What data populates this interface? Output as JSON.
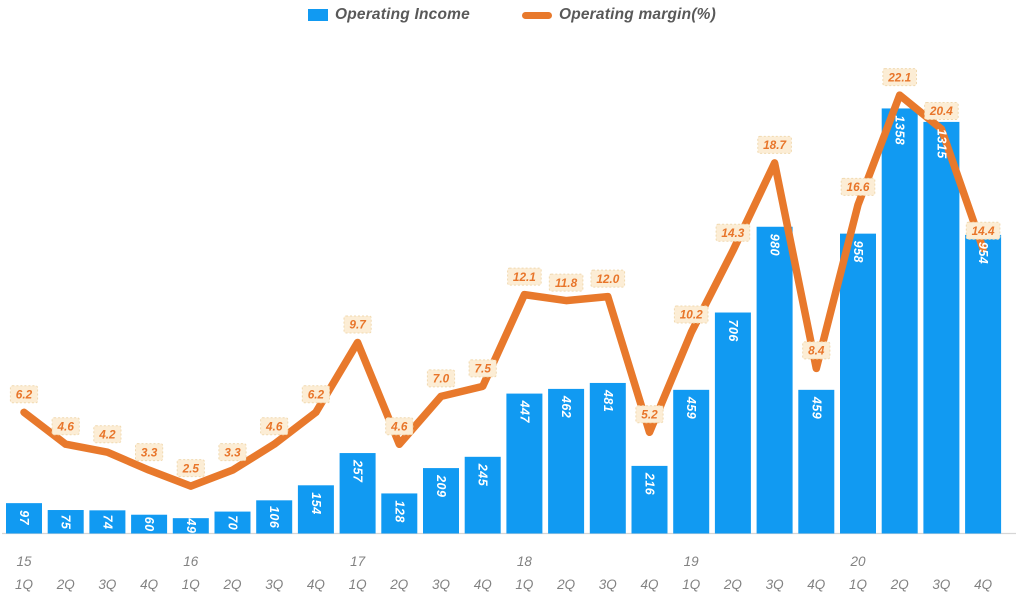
{
  "colors": {
    "bar_blue": "#119af2",
    "line_orange": "#e8792c",
    "label_bg_cream": "#fcedd5",
    "label_border": "#f0d9b0",
    "label_text_orange": "#e8752a",
    "legend_text_gray": "#595959",
    "axis_text_gray": "#828282",
    "axis_line_gray": "#d6d6d6",
    "bar_value_text": "#ffffff"
  },
  "chart_data": {
    "type": "bar+line combo",
    "title": "",
    "legend_position": "top",
    "grid": false,
    "y_axis_visible": false,
    "ylim_bars": [
      0,
      1700
    ],
    "ylim_margin_pct": [
      0,
      26
    ],
    "categories": [
      "1Q",
      "2Q",
      "3Q",
      "4Q",
      "1Q",
      "2Q",
      "3Q",
      "4Q",
      "1Q",
      "2Q",
      "3Q",
      "4Q",
      "1Q",
      "2Q",
      "3Q",
      "4Q",
      "1Q",
      "2Q",
      "3Q",
      "4Q",
      "1Q",
      "2Q",
      "3Q",
      "4Q"
    ],
    "year_labels": [
      {
        "text": "15",
        "slot": 0
      },
      {
        "text": "16",
        "slot": 4
      },
      {
        "text": "17",
        "slot": 8
      },
      {
        "text": "18",
        "slot": 12
      },
      {
        "text": "19",
        "slot": 16
      },
      {
        "text": "20",
        "slot": 20
      }
    ],
    "series": [
      {
        "name": "Operating Income",
        "type": "bar",
        "color": "#119af2",
        "value_labels": "inside-top-rotated",
        "values": [
          97,
          75,
          74,
          60,
          49,
          70,
          106,
          154,
          257,
          128,
          209,
          245,
          447,
          462,
          481,
          216,
          459,
          706,
          980,
          459,
          958,
          1358,
          1315,
          954
        ]
      },
      {
        "name": "Operating margin(%)",
        "type": "line",
        "color": "#e8792c",
        "value_labels": "callout-above-point",
        "values": [
          6.2,
          4.6,
          4.2,
          3.3,
          2.5,
          3.3,
          4.6,
          6.2,
          9.7,
          4.6,
          7.0,
          7.5,
          12.1,
          11.8,
          12.0,
          5.2,
          10.2,
          14.3,
          18.7,
          8.4,
          16.6,
          22.1,
          20.4,
          14.4
        ]
      }
    ]
  }
}
